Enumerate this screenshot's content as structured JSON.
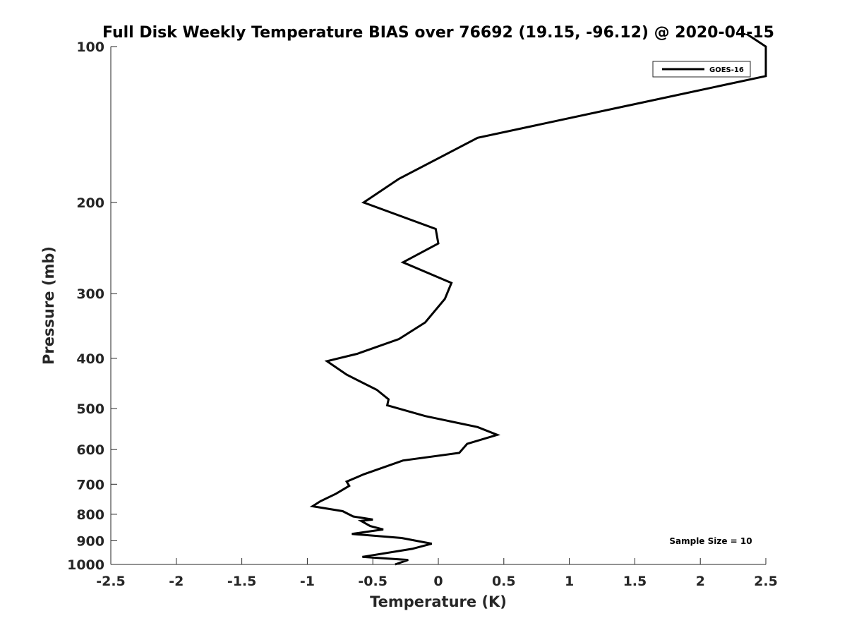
{
  "chart_data": {
    "type": "line",
    "title": "Full Disk Weekly Temperature BIAS over 76692 (19.15, -96.12) @ 2020-04-15",
    "xlabel": "Temperature (K)",
    "ylabel": "Pressure (mb)",
    "xlim": [
      -2.5,
      2.5
    ],
    "ylim": [
      1000,
      100
    ],
    "y_scale": "log",
    "y_reversed": true,
    "x_ticks": [
      "-2.5",
      "-2",
      "-1.5",
      "-1",
      "-0.5",
      "0",
      "0.5",
      "1",
      "1.5",
      "2",
      "2.5"
    ],
    "y_ticks": [
      "100",
      "200",
      "300",
      "400",
      "500",
      "600",
      "700",
      "800",
      "900",
      "1000"
    ],
    "grid": false,
    "legend": {
      "position": "top-right",
      "entries": [
        "GOES-16"
      ]
    },
    "annotation": "Sample Size = 10",
    "series": [
      {
        "name": "GOES-16",
        "color": "#000000",
        "points": [
          [
            2.5,
            100
          ],
          [
            2.5,
            114
          ],
          [
            0.3,
            150
          ],
          [
            -0.3,
            180
          ],
          [
            -0.57,
            200
          ],
          [
            -0.02,
            225
          ],
          [
            0.0,
            240
          ],
          [
            -0.27,
            261
          ],
          [
            0.1,
            286
          ],
          [
            0.05,
            307
          ],
          [
            -0.1,
            341
          ],
          [
            -0.3,
            367
          ],
          [
            -0.62,
            392
          ],
          [
            -0.85,
            405
          ],
          [
            -0.7,
            430
          ],
          [
            -0.47,
            460
          ],
          [
            -0.38,
            480
          ],
          [
            -0.39,
            493
          ],
          [
            -0.1,
            517
          ],
          [
            0.3,
            543
          ],
          [
            0.45,
            562
          ],
          [
            0.22,
            585
          ],
          [
            0.16,
            609
          ],
          [
            -0.27,
            630
          ],
          [
            -0.57,
            670
          ],
          [
            -0.7,
            692
          ],
          [
            -0.68,
            705
          ],
          [
            -0.78,
            730
          ],
          [
            -0.9,
            755
          ],
          [
            -0.96,
            772
          ],
          [
            -0.73,
            789
          ],
          [
            -0.65,
            808
          ],
          [
            -0.5,
            819
          ],
          [
            -0.59,
            824
          ],
          [
            -0.52,
            843
          ],
          [
            -0.42,
            856
          ],
          [
            -0.66,
            873
          ],
          [
            -0.28,
            889
          ],
          [
            -0.05,
            912
          ],
          [
            -0.2,
            933
          ],
          [
            -0.58,
            967
          ],
          [
            -0.23,
            980
          ],
          [
            -0.33,
            1000
          ]
        ]
      }
    ]
  }
}
